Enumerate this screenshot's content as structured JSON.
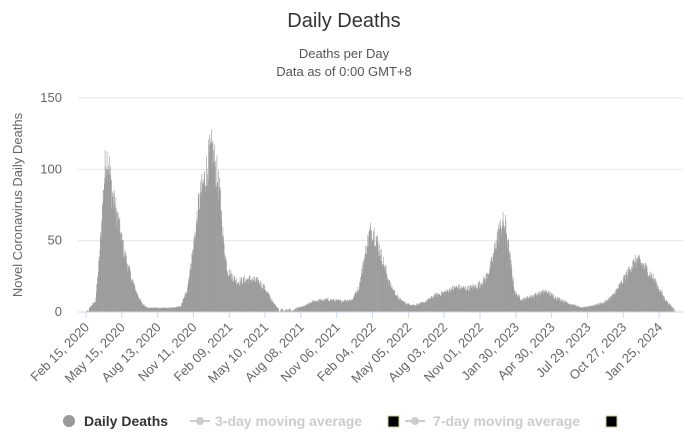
{
  "chart_data": {
    "type": "bar",
    "title": "Daily Deaths",
    "subtitle_line1": "Deaths per Day",
    "subtitle_line2": "Data as of 0:00 GMT+8",
    "ylabel": "Novel Coronavirus Daily Deaths",
    "xlabel": "",
    "ylim": [
      0,
      150
    ],
    "y_ticks": [
      0,
      50,
      100,
      150
    ],
    "x_tick_labels": [
      "Feb 15, 2020",
      "May 15, 2020",
      "Aug 13, 2020",
      "Nov 11, 2020",
      "Feb 09, 2021",
      "May 10, 2021",
      "Aug 08, 2021",
      "Nov 06, 2021",
      "Feb 04, 2022",
      "May 05, 2022",
      "Aug 03, 2022",
      "Nov 01, 2022",
      "Jan 30, 2023",
      "Apr 30, 2023",
      "Jul 29, 2023",
      "Oct 27, 2023",
      "Jan 25, 2024"
    ],
    "x_start": "Feb 15, 2020",
    "x_step_days": 1,
    "grid": true,
    "legend_position": "bottom",
    "series": [
      {
        "name": "Daily Deaths",
        "color": "#999999",
        "envelope_points": [
          [
            "Feb 15, 2020",
            0
          ],
          [
            "Mar 10, 2020",
            8
          ],
          [
            "Mar 20, 2020",
            40
          ],
          [
            "Mar 28, 2020",
            80
          ],
          [
            "Apr 05, 2020",
            113
          ],
          [
            "Apr 12, 2020",
            110
          ],
          [
            "Apr 20, 2020",
            88
          ],
          [
            "May 05, 2020",
            68
          ],
          [
            "May 20, 2020",
            45
          ],
          [
            "Jun 05, 2020",
            28
          ],
          [
            "Jun 20, 2020",
            15
          ],
          [
            "Jul 05, 2020",
            6
          ],
          [
            "Jul 20, 2020",
            3
          ],
          [
            "Aug 20, 2020",
            3
          ],
          [
            "Sep 20, 2020",
            3
          ],
          [
            "Oct 10, 2020",
            4
          ],
          [
            "Oct 25, 2020",
            15
          ],
          [
            "Nov 10, 2020",
            45
          ],
          [
            "Nov 25, 2020",
            80
          ],
          [
            "Dec 10, 2020",
            98
          ],
          [
            "Dec 20, 2020",
            112
          ],
          [
            "Dec 28, 2020",
            118
          ],
          [
            "Jan 08, 2021",
            102
          ],
          [
            "Jan 18, 2021",
            82
          ],
          [
            "Jan 25, 2021",
            52
          ],
          [
            "Feb 05, 2021",
            30
          ],
          [
            "Mar 01, 2021",
            22
          ],
          [
            "Apr 01, 2021",
            24
          ],
          [
            "Apr 25, 2021",
            22
          ],
          [
            "May 10, 2021",
            17
          ],
          [
            "Jun 01, 2021",
            6
          ],
          [
            "Jun 15, 2021",
            2
          ],
          [
            "Jul 15, 2021",
            2
          ],
          [
            "Aug 15, 2021",
            4
          ],
          [
            "Sep 10, 2021",
            8
          ],
          [
            "Oct 15, 2021",
            9
          ],
          [
            "Nov 15, 2021",
            8
          ],
          [
            "Dec 15, 2021",
            9
          ],
          [
            "Jan 01, 2022",
            18
          ],
          [
            "Jan 15, 2022",
            40
          ],
          [
            "Jan 28, 2022",
            58
          ],
          [
            "Feb 05, 2022",
            60
          ],
          [
            "Feb 15, 2022",
            52
          ],
          [
            "Mar 01, 2022",
            38
          ],
          [
            "Mar 20, 2022",
            20
          ],
          [
            "Apr 10, 2022",
            10
          ],
          [
            "May 01, 2022",
            6
          ],
          [
            "May 20, 2022",
            5
          ],
          [
            "Jun 15, 2022",
            7
          ],
          [
            "Jul 10, 2022",
            12
          ],
          [
            "Aug 01, 2022",
            14
          ],
          [
            "Sep 01, 2022",
            18
          ],
          [
            "Oct 01, 2022",
            17
          ],
          [
            "Oct 25, 2022",
            19
          ],
          [
            "Nov 15, 2022",
            24
          ],
          [
            "Dec 01, 2022",
            36
          ],
          [
            "Dec 15, 2022",
            56
          ],
          [
            "Dec 28, 2022",
            65
          ],
          [
            "Jan 05, 2023",
            62
          ],
          [
            "Jan 15, 2023",
            40
          ],
          [
            "Jan 28, 2023",
            14
          ],
          [
            "Feb 15, 2023",
            9
          ],
          [
            "Mar 15, 2023",
            12
          ],
          [
            "Apr 15, 2023",
            15
          ],
          [
            "May 15, 2023",
            10
          ],
          [
            "Jun 15, 2023",
            6
          ],
          [
            "Jul 15, 2023",
            3
          ],
          [
            "Aug 15, 2023",
            5
          ],
          [
            "Sep 10, 2023",
            7
          ],
          [
            "Oct 01, 2023",
            12
          ],
          [
            "Oct 25, 2023",
            22
          ],
          [
            "Nov 15, 2023",
            33
          ],
          [
            "Dec 01, 2023",
            38
          ],
          [
            "Dec 20, 2023",
            33
          ],
          [
            "Jan 10, 2024",
            25
          ],
          [
            "Jan 25, 2024",
            17
          ],
          [
            "Feb 10, 2024",
            9
          ],
          [
            "Feb 25, 2024",
            4
          ],
          [
            "Mar 05, 2024",
            2
          ]
        ]
      }
    ]
  },
  "legend": {
    "items": [
      {
        "label": "Daily Deaths",
        "color": "#999999",
        "active": true
      },
      {
        "label": "3-day moving average",
        "color": "#cccccc",
        "active": false
      },
      {
        "label": "7-day moving average",
        "color": "#cccccc",
        "active": false
      }
    ]
  }
}
